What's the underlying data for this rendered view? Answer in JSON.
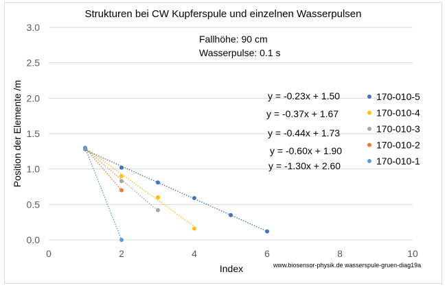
{
  "chart_data": {
    "type": "scatter",
    "title": "Strukturen bei CW Kupferspule und einzelnen Wasserpulsen",
    "xlabel": "Index",
    "ylabel": "Position der Elemente /m",
    "xlim": [
      0,
      10
    ],
    "ylim": [
      0,
      3.0
    ],
    "x_ticks": [
      "0",
      "2",
      "4",
      "6",
      "8",
      "10"
    ],
    "y_ticks": [
      "0.0",
      "0.5",
      "1.0",
      "1.5",
      "2.0",
      "2.5",
      "3.0"
    ],
    "grid": "horizontal",
    "legend_position": "right",
    "annotations": [
      "Fallhöhe: 90 cm",
      "Wasserpulse:  0.1 s"
    ],
    "source_note": "www.biosensor-physik.de  wasserspule-gruen-diag19a",
    "series": [
      {
        "name": "170-010-5",
        "color": "#4472c4",
        "x": [
          1,
          2,
          3,
          4,
          5,
          6
        ],
        "y": [
          1.28,
          1.02,
          0.81,
          0.59,
          0.35,
          0.12
        ],
        "trendline": "y = -0.23x + 1.50",
        "slope": -0.23,
        "intercept": 1.5
      },
      {
        "name": "170-010-4",
        "color": "#ffc000",
        "x": [
          1,
          2,
          3,
          4
        ],
        "y": [
          1.3,
          0.9,
          0.6,
          0.16
        ],
        "trendline": "y = -0.37x + 1.67",
        "slope": -0.37,
        "intercept": 1.67
      },
      {
        "name": "170-010-3",
        "color": "#a5a5a5",
        "x": [
          1,
          2,
          3
        ],
        "y": [
          1.29,
          0.83,
          0.42
        ],
        "trendline": "y = -0.44x + 1.73",
        "slope": -0.44,
        "intercept": 1.73
      },
      {
        "name": "170-010-2",
        "color": "#ed7d31",
        "x": [
          1,
          2
        ],
        "y": [
          1.3,
          0.7
        ],
        "trendline": "y = -0.60x + 1.90",
        "slope": -0.6,
        "intercept": 1.9
      },
      {
        "name": "170-010-1",
        "color": "#5b9bd5",
        "x": [
          1,
          2
        ],
        "y": [
          1.3,
          0.0
        ],
        "trendline": "y = -1.30x + 2.60",
        "slope": -1.3,
        "intercept": 2.6
      }
    ]
  }
}
